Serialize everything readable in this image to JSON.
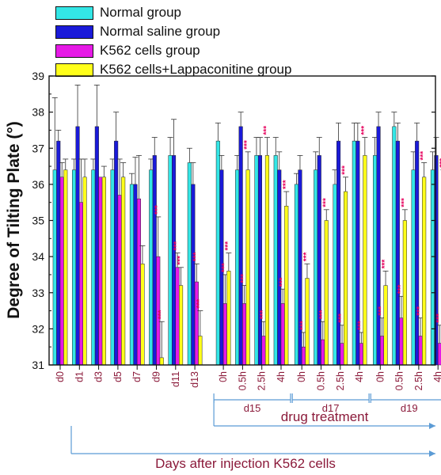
{
  "chart_data": {
    "type": "bar",
    "ylabel": "Degree of Tilting Plate (°)",
    "xlabel": "Days after injection K562 cells",
    "bracket_labels": {
      "drug_treatment": "drug treatment",
      "days_after_injection": "Days after injection K562 cells"
    },
    "ylim": [
      31,
      39
    ],
    "yticks": [
      "31",
      "32",
      "33",
      "34",
      "35",
      "36",
      "37",
      "38",
      "39"
    ],
    "groups": [
      {
        "label": "d15",
        "categories": [
          8,
          9,
          10,
          11
        ]
      },
      {
        "label": "d17",
        "categories": [
          12,
          13,
          14,
          15
        ]
      },
      {
        "label": "d19",
        "categories": [
          16,
          17,
          18,
          19
        ]
      }
    ],
    "categories": [
      "d0",
      "d1",
      "d3",
      "d5",
      "d7",
      "d9",
      "d11",
      "d13",
      "0h",
      "0.5h",
      "2.5h",
      "4h",
      "0h",
      "0.5h",
      "2.5h",
      "4h",
      "0h",
      "0.5h",
      "2.5h",
      "4h"
    ],
    "series": [
      {
        "name": "Normal group",
        "color": "#33e6e6",
        "values": [
          36.4,
          36.4,
          36.4,
          36.4,
          36.0,
          36.4,
          36.8,
          36.6,
          37.2,
          36.4,
          36.8,
          36.8,
          36.0,
          36.4,
          36.0,
          37.2,
          36.8,
          37.6,
          36.4,
          36.4
        ],
        "errors": [
          2.0,
          0.3,
          0.3,
          0.3,
          0.3,
          0.3,
          0.5,
          0.4,
          0.5,
          0.4,
          0.5,
          0.5,
          0.3,
          0.5,
          0.4,
          0.5,
          0.5,
          0.4,
          0.5,
          0.5
        ]
      },
      {
        "name": "Normal saline group",
        "color": "#1a1ad9",
        "values": [
          37.2,
          37.6,
          37.6,
          37.2,
          36.0,
          36.8,
          36.8,
          36.0,
          36.4,
          37.6,
          36.8,
          36.4,
          36.4,
          36.8,
          37.2,
          37.2,
          37.6,
          37.2,
          37.2,
          36.8
        ],
        "errors": [
          0.3,
          1.15,
          1.15,
          0.8,
          0.75,
          0.5,
          1.0,
          0.6,
          0.4,
          0.4,
          0.5,
          0.5,
          0.4,
          0.5,
          0.5,
          0.5,
          0.4,
          0.5,
          0.5,
          0.5
        ]
      },
      {
        "name": "K562 cells group",
        "color": "#e61ae6",
        "values": [
          36.2,
          35.5,
          36.2,
          35.7,
          35.6,
          34.0,
          33.7,
          33.3,
          32.7,
          32.7,
          31.8,
          32.7,
          31.5,
          31.7,
          31.6,
          31.6,
          31.8,
          32.3,
          31.8,
          31.6
        ],
        "errors": [
          0.4,
          1.2,
          0.0,
          1.0,
          1.2,
          1.1,
          0.4,
          0.5,
          0.8,
          0.5,
          0.4,
          0.4,
          0.4,
          0.5,
          0.5,
          0.3,
          0.5,
          0.6,
          0.5,
          0.5
        ],
        "markers": [
          "",
          "",
          "",
          "",
          "",
          "***",
          "***",
          "***",
          "***",
          "***",
          "***",
          "***",
          "***",
          "***",
          "***",
          "***",
          "***",
          "***",
          "***",
          "***"
        ]
      },
      {
        "name": "K562 cells+Lappaconitine group",
        "color": "#ffff1a",
        "values": [
          36.4,
          36.2,
          36.2,
          36.2,
          33.8,
          31.2,
          33.2,
          31.8,
          33.6,
          36.4,
          36.8,
          35.4,
          33.4,
          35.0,
          35.8,
          36.8,
          33.2,
          35.0,
          36.2,
          36.0
        ],
        "errors": [
          0.3,
          0.5,
          0.3,
          0.4,
          0.5,
          1.0,
          0.5,
          0.7,
          0.5,
          0.5,
          0.5,
          0.4,
          0.4,
          0.3,
          0.4,
          0.5,
          0.4,
          0.3,
          0.4,
          0.4
        ],
        "markers": [
          "",
          "",
          "",
          "",
          "",
          "***",
          "***",
          "***",
          "***",
          "***",
          "***",
          "***",
          "***",
          "***",
          "***",
          "***",
          "***",
          "***",
          "***",
          "***"
        ]
      }
    ],
    "marker_color": "#e6005c",
    "tick_label_color": "#8b1a3a",
    "bracket_color": "#5b9bd5",
    "legend_position": "top-left",
    "grid": false
  }
}
